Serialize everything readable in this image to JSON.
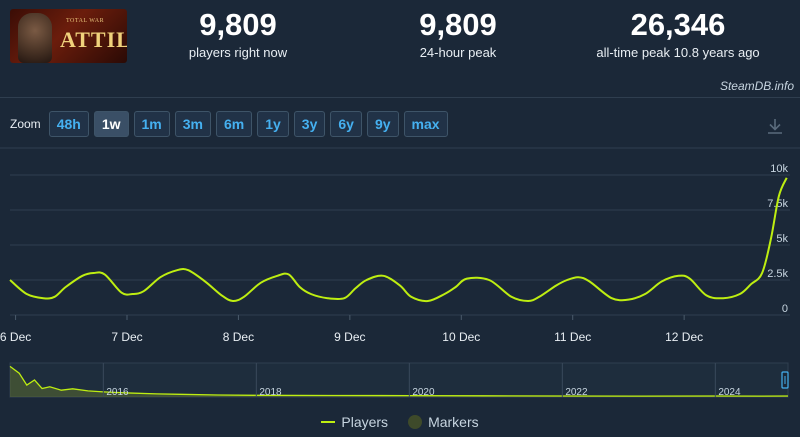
{
  "logo": {
    "small_text": "TOTAL WAR",
    "big_text": "ATTILA"
  },
  "stats": [
    {
      "value": "9,809",
      "label": "players right now"
    },
    {
      "value": "9,809",
      "label": "24-hour peak"
    },
    {
      "value": "26,346",
      "label": "all-time peak 10.8 years ago"
    }
  ],
  "brand": "SteamDB.info",
  "zoom": {
    "label": "Zoom",
    "buttons": [
      "48h",
      "1w",
      "1m",
      "3m",
      "6m",
      "1y",
      "3y",
      "6y",
      "9y",
      "max"
    ],
    "active": "1w"
  },
  "icons": {
    "download": "download-icon"
  },
  "colors": {
    "line": "#beee11",
    "background": "#1b2838",
    "grid": "#2f3e4f",
    "button_text": "#45b0f0"
  },
  "chart_data": {
    "type": "line",
    "series": [
      {
        "name": "Players"
      }
    ],
    "x_ticks": [
      "6 Dec",
      "7 Dec",
      "8 Dec",
      "9 Dec",
      "10 Dec",
      "11 Dec",
      "12 Dec"
    ],
    "y_ticks": [
      "10k",
      "7.5k",
      "5k",
      "2.5k",
      "0"
    ],
    "ylim": [
      0,
      10000
    ],
    "xlim": [
      -0.05,
      6.95
    ],
    "main": {
      "x": [
        -0.05,
        0.1,
        0.25,
        0.35,
        0.45,
        0.6,
        0.7,
        0.8,
        0.95,
        1.05,
        1.15,
        1.3,
        1.45,
        1.55,
        1.7,
        1.85,
        1.95,
        2.05,
        2.2,
        2.35,
        2.45,
        2.55,
        2.65,
        2.8,
        2.95,
        3.05,
        3.15,
        3.3,
        3.45,
        3.55,
        3.7,
        3.85,
        3.95,
        4.05,
        4.25,
        4.45,
        4.6,
        4.7,
        4.85,
        4.95,
        5.05,
        5.15,
        5.35,
        5.5,
        5.65,
        5.8,
        5.95,
        6.05,
        6.2,
        6.35,
        6.5,
        6.6,
        6.7,
        6.78,
        6.85,
        6.92
      ],
      "y": [
        2500,
        1500,
        1200,
        1300,
        2000,
        2800,
        3000,
        2900,
        1600,
        1500,
        1700,
        2700,
        3200,
        3200,
        2400,
        1400,
        1000,
        1300,
        2300,
        2800,
        2900,
        2000,
        1500,
        1200,
        1200,
        1900,
        2500,
        2800,
        2100,
        1300,
        1000,
        1500,
        2000,
        2600,
        2500,
        1300,
        1000,
        1300,
        2100,
        2500,
        2700,
        2400,
        1200,
        1100,
        1500,
        2400,
        2800,
        2600,
        1400,
        1200,
        1500,
        2200,
        3000,
        5500,
        8500,
        9800
      ]
    },
    "navigator": {
      "x_ticks": [
        "2016",
        "2018",
        "2020",
        "2022",
        "2024"
      ],
      "x": [
        2014.78,
        2014.9,
        2015.0,
        2015.1,
        2015.2,
        2015.3,
        2015.45,
        2015.6,
        2015.8,
        2016.0,
        2016.3,
        2016.7,
        2017.0,
        2017.5,
        2018.0,
        2019.0,
        2020.0,
        2021.0,
        2022.0,
        2023.0,
        2024.0,
        2024.6,
        2024.95
      ],
      "y": [
        9000,
        7000,
        3500,
        5000,
        2500,
        3000,
        2000,
        2400,
        1800,
        1500,
        1200,
        900,
        800,
        600,
        500,
        450,
        400,
        350,
        300,
        250,
        300,
        250,
        300
      ]
    }
  },
  "legend": [
    {
      "label": "Players",
      "kind": "line"
    },
    {
      "label": "Markers",
      "kind": "dot"
    }
  ]
}
